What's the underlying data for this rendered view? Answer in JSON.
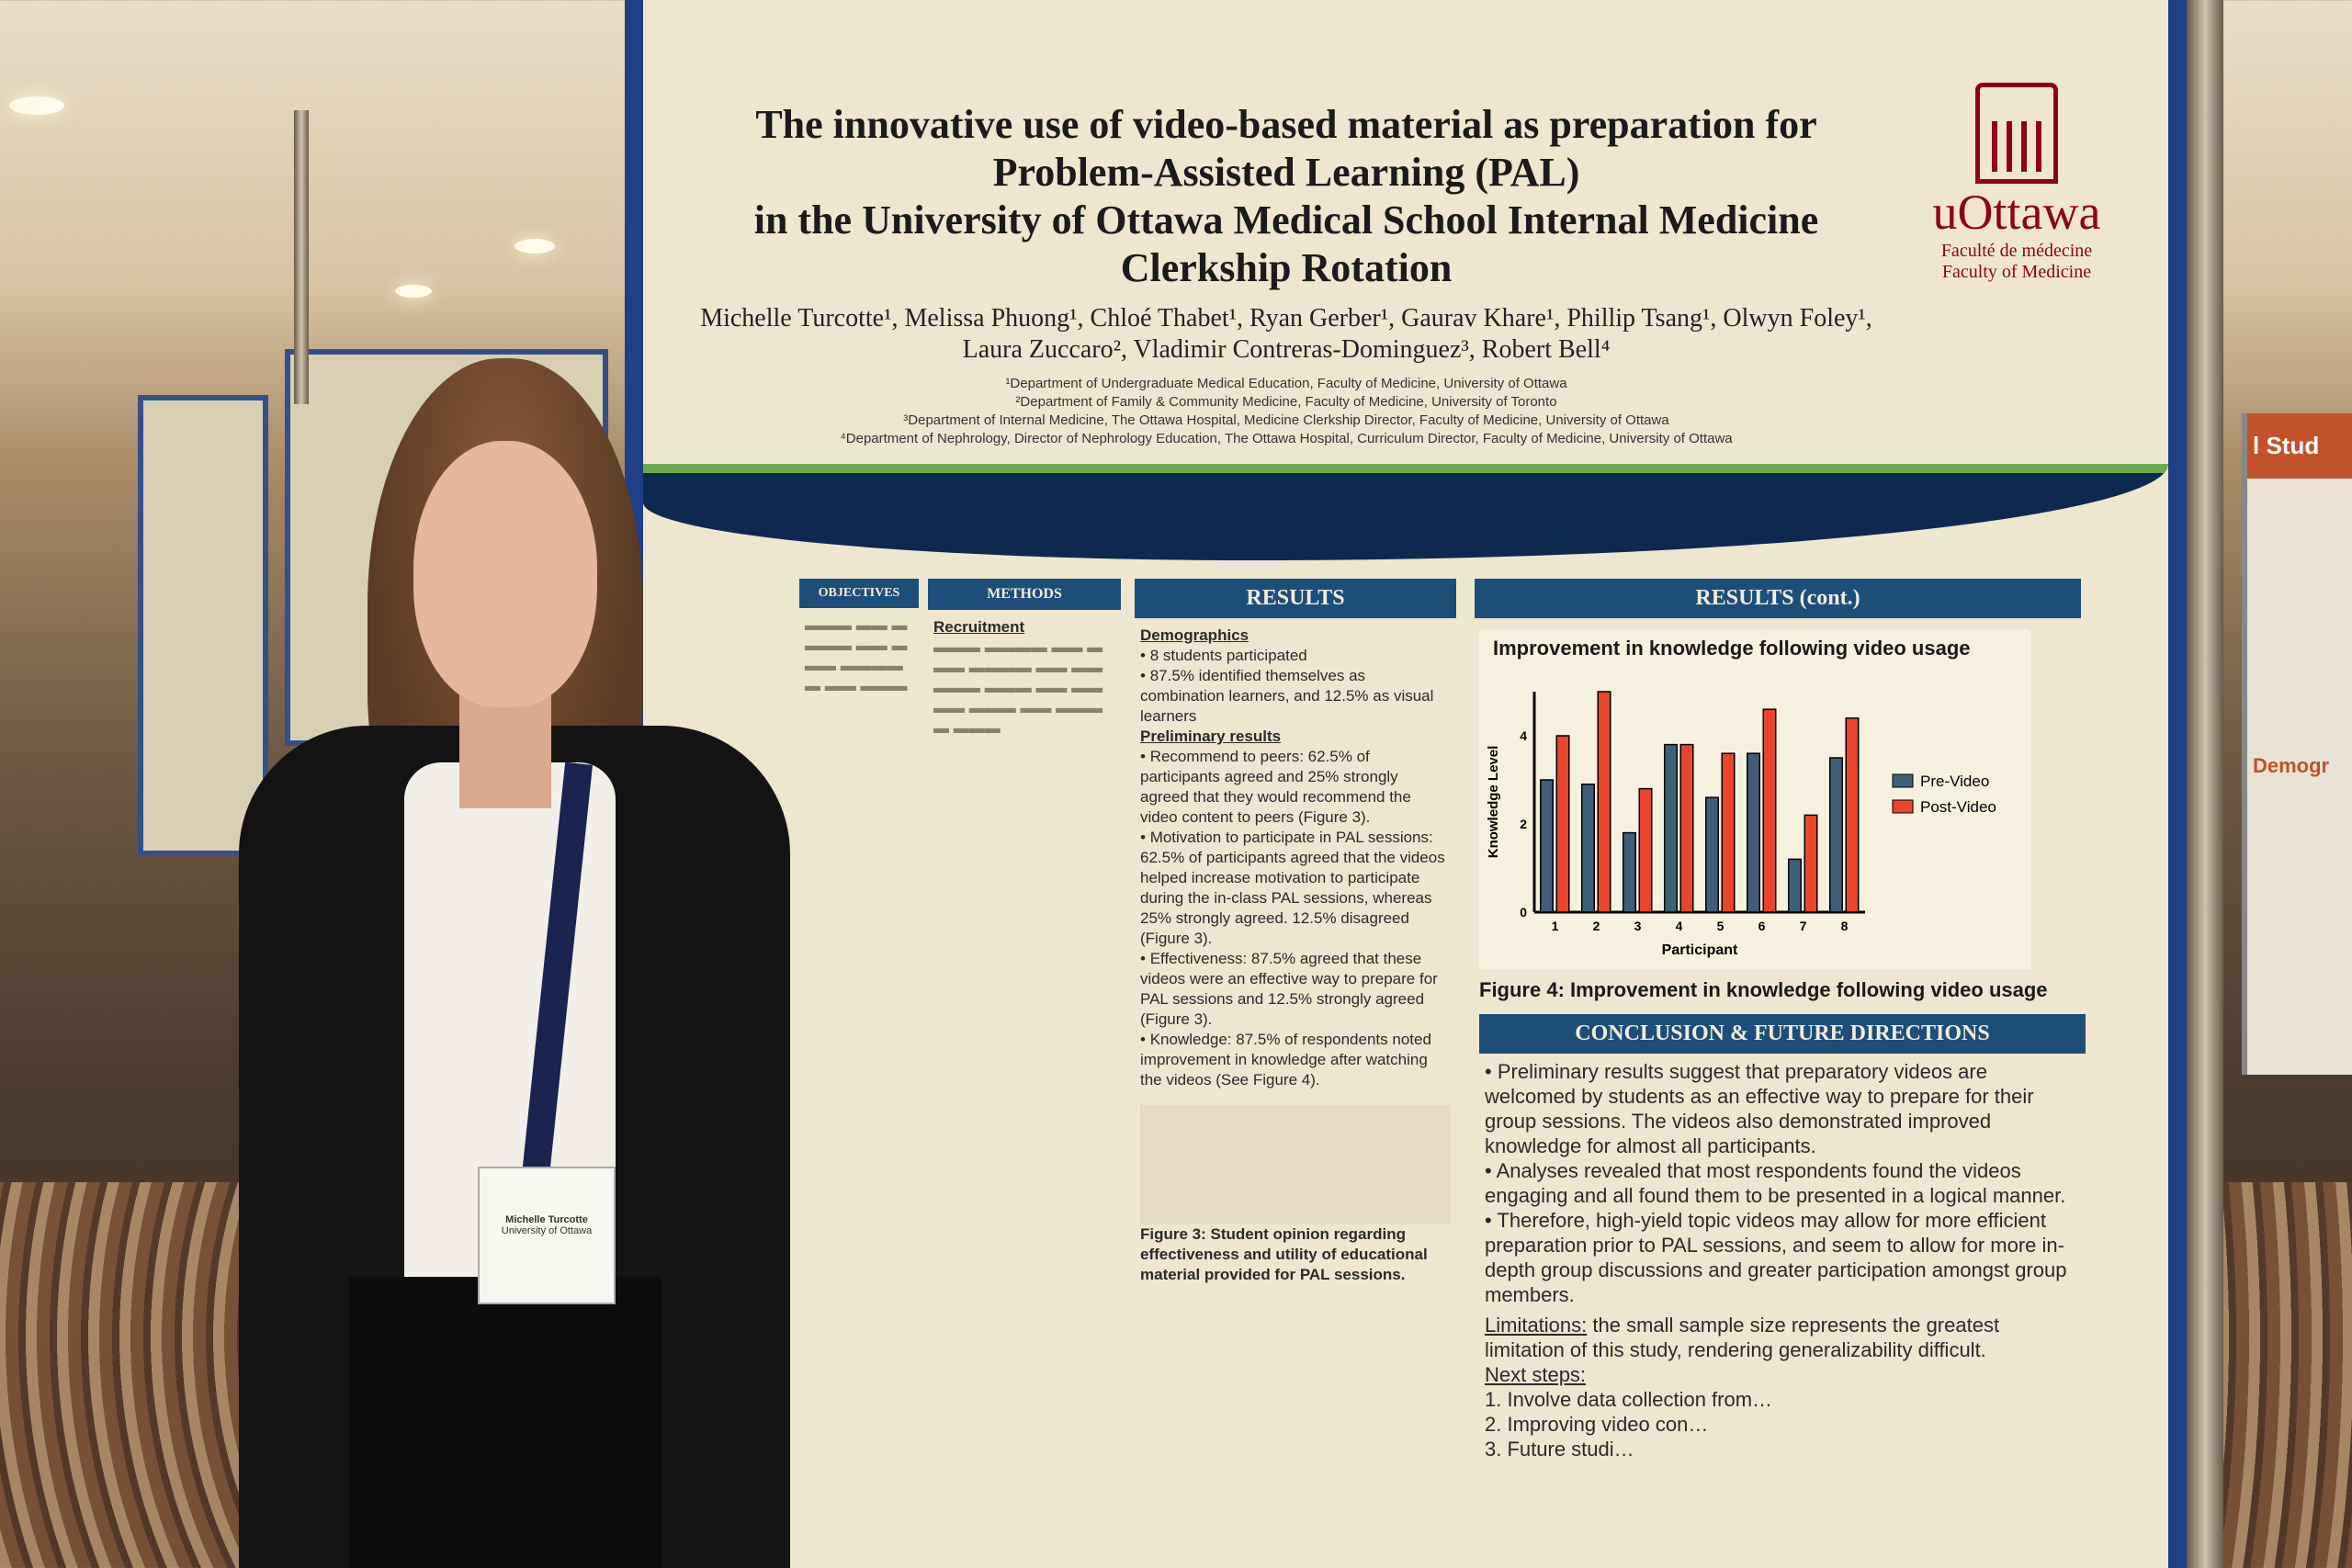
{
  "poster": {
    "title_line1": "The innovative use of video-based material as preparation for Problem-Assisted Learning (PAL)",
    "title_line2": "in the University of Ottawa Medical School Internal Medicine Clerkship Rotation",
    "authors": "Michelle Turcotte¹, Melissa Phuong¹, Chloé Thabet¹, Ryan Gerber¹, Gaurav Khare¹, Phillip Tsang¹, Olwyn Foley¹, Laura Zuccaro², Vladimir Contreras-Dominguez³, Robert Bell⁴",
    "affiliations": [
      "¹Department of Undergraduate Medical Education, Faculty of Medicine, University of Ottawa",
      "²Department of Family & Community Medicine, Faculty of Medicine, University of Toronto",
      "³Department of Internal Medicine, The Ottawa Hospital, Medicine Clerkship Director, Faculty of Medicine, University of Ottawa",
      "⁴Department of Nephrology, Director of Nephrology Education, The Ottawa Hospital, Curriculum Director, Faculty of Medicine, University of Ottawa"
    ],
    "logo": {
      "name": "uOttawa",
      "fac_fr": "Faculté de médecine",
      "fac_en": "Faculty of Medicine"
    },
    "colors": {
      "navy": "#1d4e7a",
      "green": "#6aa84f",
      "ottawa_red": "#8f001a",
      "pre": "#3f5f78",
      "post": "#e8452c"
    },
    "sections": {
      "objectives": {
        "heading": "OBJECTIVES"
      },
      "methods": {
        "heading": "METHODS",
        "subhead": "Recruitment"
      },
      "results": {
        "heading": "RESULTS",
        "demographics_label": "Demographics",
        "demographics": [
          "8 students participated",
          "87.5% identified themselves as combination learners, and 12.5% as visual learners"
        ],
        "prelim_label": "Preliminary results",
        "items": [
          "Recommend to peers: 62.5% of participants agreed and 25% strongly agreed that they would recommend the video content to peers (Figure 3).",
          "Motivation to participate in PAL sessions: 62.5% of participants agreed that the videos helped increase motivation to participate during the in-class PAL sessions, whereas 25% strongly agreed. 12.5% disagreed (Figure 3).",
          "Effectiveness: 87.5% agreed that these videos were an effective way to prepare for PAL sessions and 12.5% strongly agreed (Figure 3).",
          "Knowledge: 87.5% of respondents noted improvement in knowledge after watching the videos (See Figure 4)."
        ],
        "fig3_caption": "Figure 3: Student opinion regarding effectiveness and utility of educational material provided for PAL sessions."
      },
      "results_cont": {
        "heading": "RESULTS (cont.)",
        "fig4_caption": "Figure 4: Improvement in knowledge following video usage"
      },
      "conclusion": {
        "heading": "CONCLUSION & FUTURE DIRECTIONS",
        "bullets": [
          "Preliminary results suggest that preparatory videos are welcomed by students as an effective way to prepare for their group sessions. The videos also demonstrated improved knowledge for almost all participants.",
          "Analyses revealed that most respondents found the videos engaging and all found them to be presented in a logical manner.",
          "Therefore, high-yield topic videos may allow for more efficient preparation prior to PAL sessions, and seem to allow for more in-depth group discussions and greater participation amongst group members."
        ],
        "limitations_label": "Limitations:",
        "limitations": "the small sample size represents the greatest limitation of this study, rendering generalizability difficult.",
        "next_steps_label": "Next steps:",
        "next_steps": [
          "Involve data collection from…",
          "Improving video con…",
          "Future studi…"
        ]
      }
    }
  },
  "badge": {
    "name": "Michelle Turcotte",
    "org": "University of Ottawa"
  },
  "right_poster": {
    "head": "l Stud",
    "sub": "Demogr"
  },
  "chart_data": {
    "type": "bar",
    "title": "Improvement in knowledge following video usage",
    "xlabel": "Participant",
    "ylabel": "Knowledge Level",
    "categories": [
      "1",
      "2",
      "3",
      "4",
      "5",
      "6",
      "7",
      "8"
    ],
    "yticks": [
      0,
      2,
      4
    ],
    "ylim": [
      0,
      5
    ],
    "series": [
      {
        "name": "Pre-Video",
        "color": "#3f5f78",
        "values": [
          3.0,
          2.9,
          1.8,
          3.8,
          2.6,
          3.6,
          1.2,
          3.5
        ]
      },
      {
        "name": "Post-Video",
        "color": "#e8452c",
        "values": [
          4.0,
          5.0,
          2.8,
          3.8,
          3.6,
          4.6,
          2.2,
          4.4
        ]
      }
    ],
    "legend": "right"
  }
}
